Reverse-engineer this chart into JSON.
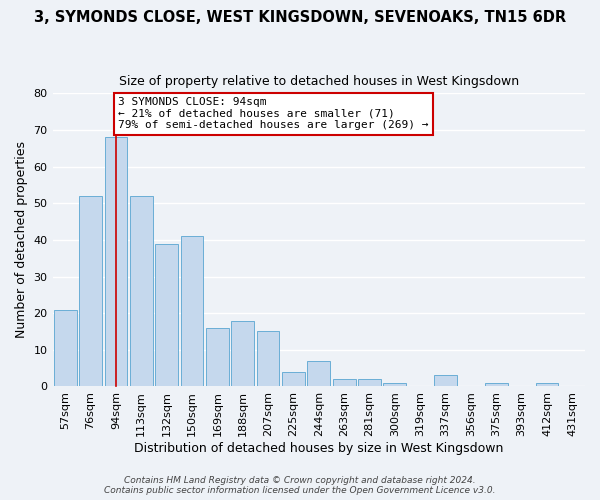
{
  "title": "3, SYMONDS CLOSE, WEST KINGSDOWN, SEVENOAKS, TN15 6DR",
  "subtitle": "Size of property relative to detached houses in West Kingsdown",
  "xlabel": "Distribution of detached houses by size in West Kingsdown",
  "ylabel": "Number of detached properties",
  "bar_labels": [
    "57sqm",
    "76sqm",
    "94sqm",
    "113sqm",
    "132sqm",
    "150sqm",
    "169sqm",
    "188sqm",
    "207sqm",
    "225sqm",
    "244sqm",
    "263sqm",
    "281sqm",
    "300sqm",
    "319sqm",
    "337sqm",
    "356sqm",
    "375sqm",
    "393sqm",
    "412sqm",
    "431sqm"
  ],
  "bar_values": [
    21,
    52,
    68,
    52,
    39,
    41,
    16,
    18,
    15,
    4,
    7,
    2,
    2,
    1,
    0,
    3,
    0,
    1,
    0,
    1,
    0
  ],
  "bar_color": "#c5d8ed",
  "bar_edge_color": "#6aaed6",
  "vline_x_index": 2,
  "annotation_title": "3 SYMONDS CLOSE: 94sqm",
  "annotation_line1": "← 21% of detached houses are smaller (71)",
  "annotation_line2": "79% of semi-detached houses are larger (269) →",
  "annotation_box_color": "#ffffff",
  "annotation_box_edge": "#cc0000",
  "vline_color": "#cc0000",
  "footer1": "Contains HM Land Registry data © Crown copyright and database right 2024.",
  "footer2": "Contains public sector information licensed under the Open Government Licence v3.0.",
  "ylim": [
    0,
    80
  ],
  "background_color": "#eef2f7",
  "grid_color": "#ffffff",
  "title_fontsize": 10.5,
  "subtitle_fontsize": 9
}
